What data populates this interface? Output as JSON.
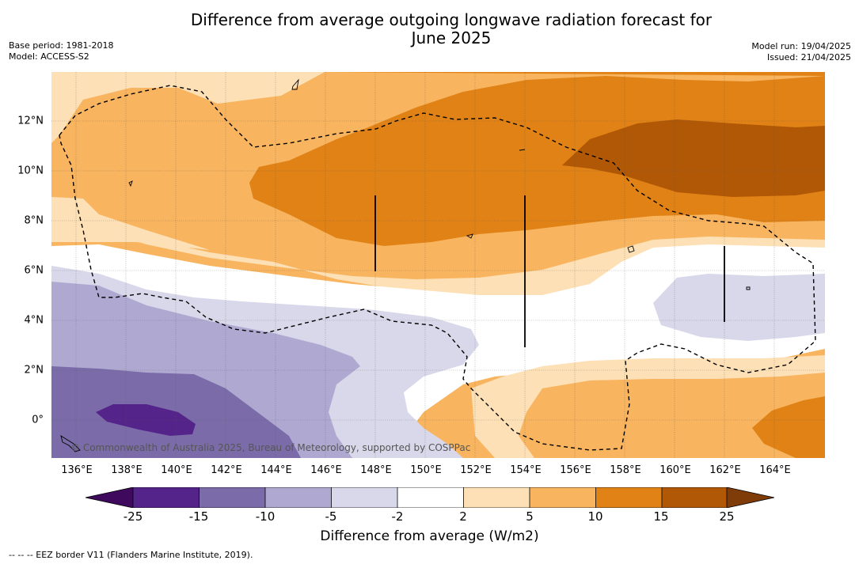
{
  "header": {
    "title_line1": "Difference from average outgoing longwave radiation forecast for",
    "title_line2": "June 2025",
    "base_period": "Base period: 1981-2018",
    "model": "Model: ACCESS-S2",
    "model_run": "Model run: 19/04/2025",
    "issued": "Issued: 21/04/2025"
  },
  "map": {
    "copyright": "© Commonwealth of Australia 2025, Bureau of Meteorology, supported by COSPPac",
    "x_ticks": [
      "136°E",
      "138°E",
      "140°E",
      "142°E",
      "144°E",
      "146°E",
      "148°E",
      "150°E",
      "152°E",
      "154°E",
      "156°E",
      "158°E",
      "160°E",
      "162°E",
      "164°E"
    ],
    "y_ticks": [
      "12°N",
      "10°N",
      "8°N",
      "6°N",
      "4°N",
      "2°N",
      "0°"
    ],
    "lon_range": [
      135,
      166
    ],
    "lat_range": [
      -1.5,
      14
    ]
  },
  "colorbar": {
    "ticks": [
      "-25",
      "-15",
      "-10",
      "-5",
      "-2",
      "2",
      "5",
      "10",
      "15",
      "25"
    ],
    "label": "Difference from average (W/m2)",
    "colors": [
      "#3f0a5e",
      "#55248a",
      "#7b6ca9",
      "#afa9d1",
      "#d8d8ea",
      "#ffffff",
      "#fde0b5",
      "#f8b45f",
      "#e08215",
      "#b15806",
      "#7f3b08"
    ]
  },
  "footnote": "--  --  -- EEZ border V11 (Flanders Marine Institute, 2019)."
}
